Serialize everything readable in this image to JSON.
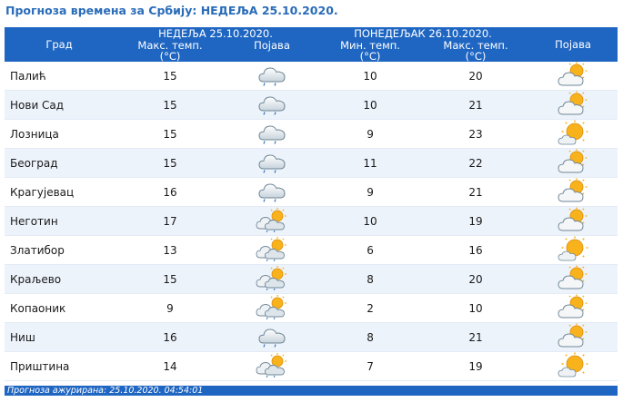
{
  "title": "Прогноза времена за Србију: НЕДЕЉА  25.10.2020.",
  "header": {
    "city": "Град",
    "day1": "НЕДЕЉА  25.10.2020.",
    "day2": "ПОНЕДЕЉАК  26.10.2020.",
    "max_temp_line1": "Макс. темп.",
    "min_temp_line1": "Мин. темп.",
    "unit": "(°C)",
    "phenomenon": "Појава"
  },
  "rows": [
    {
      "city": "Палић",
      "d1_max": "15",
      "d1_icon": "cloud-drizzle-icon",
      "d2_min": "10",
      "d2_max": "20",
      "d2_icon": "partly-cloudy-icon"
    },
    {
      "city": "Нови Сад",
      "d1_max": "15",
      "d1_icon": "cloud-drizzle-icon",
      "d2_min": "10",
      "d2_max": "21",
      "d2_icon": "partly-cloudy-icon"
    },
    {
      "city": "Лозница",
      "d1_max": "15",
      "d1_icon": "cloud-drizzle-icon",
      "d2_min": "9",
      "d2_max": "23",
      "d2_icon": "mostly-sunny-icon"
    },
    {
      "city": "Београд",
      "d1_max": "15",
      "d1_icon": "cloud-drizzle-icon",
      "d2_min": "11",
      "d2_max": "22",
      "d2_icon": "partly-cloudy-icon"
    },
    {
      "city": "Крагујевац",
      "d1_max": "16",
      "d1_icon": "cloud-drizzle-icon",
      "d2_min": "9",
      "d2_max": "21",
      "d2_icon": "partly-cloudy-icon"
    },
    {
      "city": "Неготин",
      "d1_max": "17",
      "d1_icon": "sun-cloud-rain-icon",
      "d2_min": "10",
      "d2_max": "19",
      "d2_icon": "partly-cloudy-icon"
    },
    {
      "city": "Златибор",
      "d1_max": "13",
      "d1_icon": "sun-cloud-rain-icon",
      "d2_min": "6",
      "d2_max": "16",
      "d2_icon": "mostly-sunny-icon"
    },
    {
      "city": "Краљево",
      "d1_max": "15",
      "d1_icon": "sun-cloud-rain-icon",
      "d2_min": "8",
      "d2_max": "20",
      "d2_icon": "partly-cloudy-icon"
    },
    {
      "city": "Копаоник",
      "d1_max": "9",
      "d1_icon": "sun-cloud-rain-icon",
      "d2_min": "2",
      "d2_max": "10",
      "d2_icon": "partly-cloudy-icon"
    },
    {
      "city": "Ниш",
      "d1_max": "16",
      "d1_icon": "cloud-drizzle-icon",
      "d2_min": "8",
      "d2_max": "21",
      "d2_icon": "partly-cloudy-icon"
    },
    {
      "city": "Приштина",
      "d1_max": "14",
      "d1_icon": "sun-cloud-rain-icon",
      "d2_min": "7",
      "d2_max": "19",
      "d2_icon": "mostly-sunny-icon"
    }
  ],
  "footer": "Прогноза ажурирана:  25.10.2020.  04:54:01",
  "colors": {
    "title": "#2a6cb8",
    "header_bg": "#1f66c2",
    "row_alt": "#edf3fb"
  }
}
